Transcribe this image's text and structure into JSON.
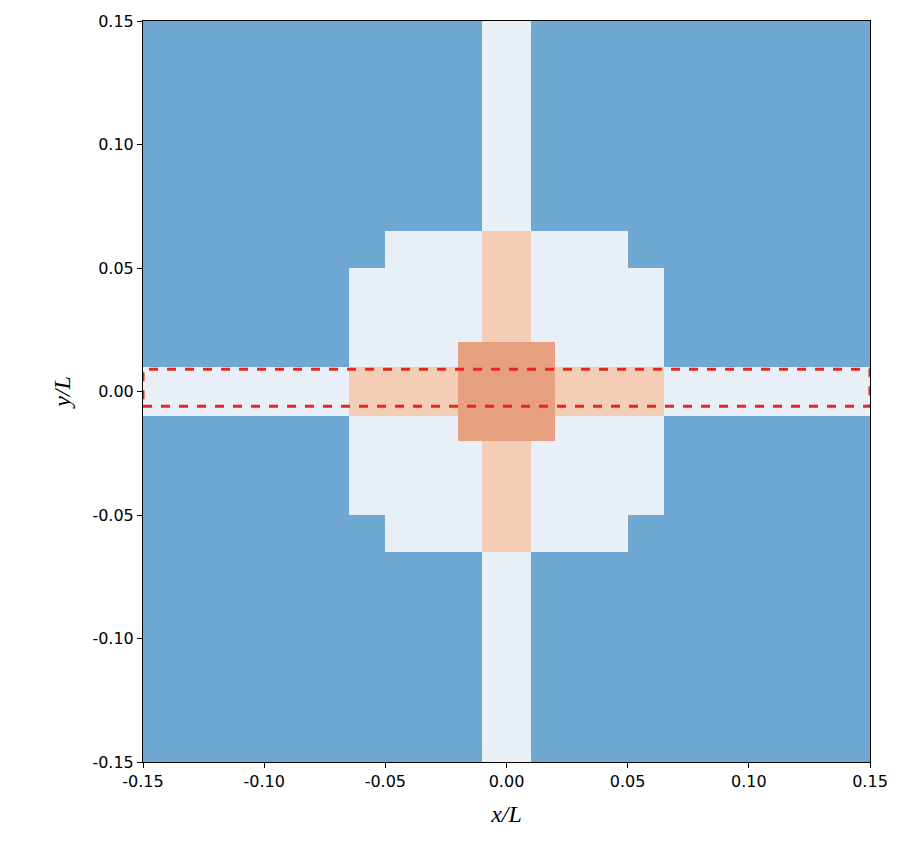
{
  "chart_data": {
    "type": "heatmap",
    "x_label": "x/L",
    "y_label": "y/L",
    "x_edges": [
      -0.15,
      -0.12,
      -0.09,
      -0.065,
      -0.05,
      -0.035,
      -0.02,
      -0.01,
      0.01,
      0.02,
      0.035,
      0.05,
      0.065,
      0.09,
      0.12,
      0.15
    ],
    "y_edges": [
      -0.15,
      -0.12,
      -0.09,
      -0.065,
      -0.05,
      -0.035,
      -0.02,
      -0.01,
      0.01,
      0.02,
      0.035,
      0.05,
      0.065,
      0.09,
      0.12,
      0.15
    ],
    "cells": [
      [
        0,
        0,
        0,
        0,
        0,
        0,
        0,
        1,
        0,
        0,
        0,
        0,
        0,
        0,
        0
      ],
      [
        0,
        0,
        0,
        0,
        0,
        0,
        0,
        1,
        0,
        0,
        0,
        0,
        0,
        0,
        0
      ],
      [
        0,
        0,
        0,
        0,
        0,
        0,
        0,
        1,
        0,
        0,
        0,
        0,
        0,
        0,
        0
      ],
      [
        0,
        0,
        0,
        0,
        1,
        1,
        1,
        2,
        1,
        1,
        1,
        0,
        0,
        0,
        0
      ],
      [
        0,
        0,
        0,
        1,
        1,
        1,
        1,
        2,
        1,
        1,
        1,
        1,
        0,
        0,
        0
      ],
      [
        0,
        0,
        0,
        1,
        1,
        1,
        1,
        2,
        1,
        1,
        1,
        1,
        0,
        0,
        0
      ],
      [
        0,
        0,
        0,
        1,
        1,
        1,
        3,
        3,
        3,
        1,
        1,
        1,
        0,
        0,
        0
      ],
      [
        1,
        1,
        1,
        2,
        2,
        2,
        3,
        3,
        3,
        2,
        2,
        2,
        1,
        1,
        1
      ],
      [
        0,
        0,
        0,
        1,
        1,
        1,
        3,
        3,
        3,
        1,
        1,
        1,
        0,
        0,
        0
      ],
      [
        0,
        0,
        0,
        1,
        1,
        1,
        1,
        2,
        1,
        1,
        1,
        1,
        0,
        0,
        0
      ],
      [
        0,
        0,
        0,
        1,
        1,
        1,
        1,
        2,
        1,
        1,
        1,
        1,
        0,
        0,
        0
      ],
      [
        0,
        0,
        0,
        0,
        1,
        1,
        1,
        2,
        1,
        1,
        1,
        0,
        0,
        0,
        0
      ],
      [
        0,
        0,
        0,
        0,
        0,
        0,
        0,
        1,
        0,
        0,
        0,
        0,
        0,
        0,
        0
      ],
      [
        0,
        0,
        0,
        0,
        0,
        0,
        0,
        1,
        0,
        0,
        0,
        0,
        0,
        0,
        0
      ],
      [
        0,
        0,
        0,
        0,
        0,
        0,
        0,
        1,
        0,
        0,
        0,
        0,
        0,
        0,
        0
      ]
    ],
    "xlim": [
      -0.15,
      0.15
    ],
    "ylim": [
      -0.15,
      0.15
    ],
    "xticks": [
      -0.15,
      {
        "value": -0.1,
        "label": "-0.10"
      },
      -0.05,
      {
        "value": 0,
        "label": "0.00"
      },
      0.05,
      {
        "value": 0.1,
        "label": "0.10"
      },
      0.15
    ],
    "yticks": [
      -0.15,
      {
        "value": -0.1,
        "label": "-0.10"
      },
      -0.05,
      {
        "value": 0,
        "label": "0.00"
      },
      0.05,
      {
        "value": 0.1,
        "label": "0.10"
      },
      0.15
    ],
    "highlight": {
      "x": [
        -0.15,
        0.15
      ],
      "y": [
        -0.006,
        0.009
      ],
      "color": "#e8261c",
      "line_style": "dash"
    }
  }
}
